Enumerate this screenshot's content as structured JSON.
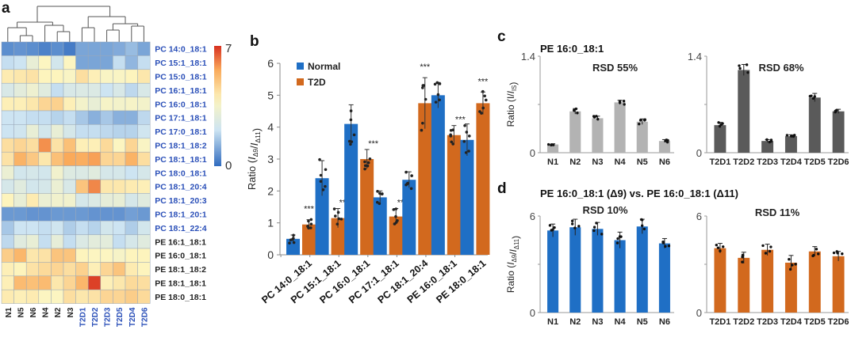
{
  "colors": {
    "normal": "#1f6fc5",
    "t2d": "#d2691e",
    "gray_light": "#b3b3b3",
    "gray_dark": "#5a5a5a",
    "label_blue": "#2a4fb8",
    "label_black": "#222222",
    "heat_low": "#2f6bbf",
    "heat_mid": "#fdf6c0",
    "heat_high": "#d7301f"
  },
  "chart_data": [
    {
      "panel": "a",
      "panel_label": "a",
      "type": "heatmap",
      "columns": [
        "N1",
        "N5",
        "N6",
        "N4",
        "N2",
        "N3",
        "T2D1",
        "T2D2",
        "T2D3",
        "T2D5",
        "T2D4",
        "T2D6"
      ],
      "column_groups": [
        "normal",
        "normal",
        "normal",
        "normal",
        "normal",
        "normal",
        "t2d",
        "t2d",
        "t2d",
        "t2d",
        "t2d",
        "t2d"
      ],
      "rows": [
        "PC 14:0_18:1",
        "PC 15:1_18:1",
        "PC 15:0_18:1",
        "PC 16:1_18:1",
        "PC 16:0_18:1",
        "PC 17:1_18:1",
        "PC 17:0_18:1",
        "PC 18:1_18:2",
        "PC 18:1_18:1",
        "PC 18:0_18:1",
        "PC 18:1_20:4",
        "PC 18:1_20:3",
        "PC 18:1_20:1",
        "PC 18:1_22:4",
        "PE 16:1_18:1",
        "PE 16:0_18:1",
        "PE 18:1_18:2",
        "PE 18:1_18:1",
        "PE 18:0_18:1"
      ],
      "row_groups": [
        "PC",
        "PC",
        "PC",
        "PC",
        "PC",
        "PC",
        "PC",
        "PC",
        "PC",
        "PC",
        "PC",
        "PC",
        "PC",
        "PC",
        "PE",
        "PE",
        "PE",
        "PE",
        "PE"
      ],
      "values": [
        [
          0.6,
          0.7,
          0.6,
          0.4,
          0.6,
          0.3,
          1.0,
          1.0,
          1.0,
          1.1,
          1.4,
          1.0
        ],
        [
          2.0,
          2.1,
          3.1,
          3.8,
          2.3,
          3.8,
          1.0,
          1.0,
          1.0,
          2.0,
          1.3,
          2.0
        ],
        [
          4.1,
          4.2,
          4.3,
          3.9,
          3.9,
          3.7,
          4.4,
          4.0,
          3.7,
          3.7,
          3.9,
          4.2
        ],
        [
          2.5,
          2.9,
          3.3,
          2.8,
          2.0,
          2.5,
          2.6,
          2.6,
          2.1,
          2.5,
          1.9,
          2.5
        ],
        [
          4.0,
          4.0,
          4.2,
          4.6,
          4.7,
          4.0,
          3.5,
          3.1,
          3.6,
          3.5,
          3.6,
          3.5
        ],
        [
          2.1,
          2.1,
          2.0,
          2.0,
          1.8,
          2.0,
          1.6,
          1.2,
          1.6,
          1.2,
          1.2,
          1.9
        ],
        [
          2.1,
          2.2,
          3.1,
          2.3,
          3.1,
          2.4,
          2.0,
          2.0,
          1.9,
          1.8,
          1.8,
          2.2
        ],
        [
          4.4,
          4.6,
          4.4,
          5.9,
          4.3,
          5.1,
          4.0,
          4.0,
          4.5,
          3.8,
          4.6,
          3.7
        ],
        [
          4.3,
          5.4,
          4.9,
          4.2,
          5.1,
          5.6,
          5.5,
          5.7,
          4.6,
          4.6,
          5.4,
          4.4
        ],
        [
          3.2,
          2.3,
          2.4,
          2.3,
          3.4,
          2.7,
          2.6,
          2.8,
          2.4,
          2.4,
          2.1,
          2.4
        ],
        [
          2.4,
          2.8,
          2.3,
          2.4,
          3.2,
          2.5,
          5.0,
          6.0,
          4.2,
          4.2,
          4.1,
          4.0
        ],
        [
          3.9,
          3.1,
          4.1,
          3.2,
          3.4,
          3.4,
          2.4,
          2.6,
          3.0,
          3.1,
          2.4,
          2.8
        ],
        [
          0.8,
          0.8,
          0.7,
          0.7,
          0.8,
          0.8,
          0.8,
          0.7,
          0.7,
          0.7,
          0.9,
          0.8
        ],
        [
          1.6,
          2.1,
          2.1,
          2.0,
          2.2,
          1.7,
          2.0,
          1.8,
          2.3,
          2.1,
          1.7,
          2.3
        ],
        [
          1.9,
          2.8,
          3.1,
          2.0,
          3.0,
          2.0,
          2.6,
          2.9,
          2.9,
          2.0,
          2.4,
          2.8
        ],
        [
          4.8,
          5.3,
          4.2,
          4.3,
          5.0,
          5.0,
          3.9,
          3.8,
          3.8,
          3.6,
          3.9,
          3.9
        ],
        [
          4.0,
          3.9,
          4.3,
          4.5,
          4.6,
          4.4,
          4.7,
          4.0,
          4.6,
          5.0,
          4.1,
          3.9
        ],
        [
          4.0,
          5.2,
          5.1,
          5.2,
          4.2,
          4.6,
          5.3,
          6.8,
          4.0,
          4.2,
          4.5,
          4.4
        ],
        [
          4.1,
          4.0,
          4.1,
          3.8,
          3.8,
          4.4,
          4.2,
          4.3,
          4.6,
          4.6,
          4.8,
          4.5
        ]
      ],
      "colorbar": {
        "min": 0,
        "max": 7,
        "min_label": "0",
        "max_label": "7"
      },
      "dendrogram": "columns"
    },
    {
      "panel": "b",
      "panel_label": "b",
      "type": "bar",
      "categories": [
        "PC 14:0_18:1",
        "PC 15:1_18:1",
        "PC 16:0_18:1",
        "PC 17:1_18:1",
        "PC 18:1_20:4",
        "PE 16:0_18:1",
        "PE 18:0_18:1"
      ],
      "series": [
        {
          "name": "Normal",
          "values": [
            0.5,
            2.4,
            4.1,
            1.8,
            2.35,
            5.0,
            3.6
          ],
          "errors": [
            0.12,
            0.55,
            0.6,
            0.2,
            0.25,
            0.4,
            0.5
          ]
        },
        {
          "name": "T2D",
          "values": [
            0.95,
            1.15,
            3.0,
            1.2,
            4.75,
            3.75,
            4.75
          ],
          "errors": [
            0.15,
            0.3,
            0.3,
            0.25,
            0.8,
            0.3,
            0.35
          ]
        }
      ],
      "significance": [
        "***",
        "***",
        "***",
        "***",
        "***",
        "***",
        "***"
      ],
      "ylabel": "Ratio (I_Δ9/I_Δ11)",
      "ylim": [
        0,
        6
      ],
      "yticks": [
        "0",
        "1",
        "2",
        "3",
        "4",
        "5",
        "6"
      ],
      "legend": "top-left"
    },
    {
      "panel": "c",
      "panel_label": "c",
      "type": "bar",
      "title": "PE 16:0_18:1",
      "ylabel": "Ratio (I/I_IS)",
      "subplots": [
        {
          "annotation": "RSD 55%",
          "categories": [
            "N1",
            "N2",
            "N3",
            "N4",
            "N5",
            "N6"
          ],
          "values": [
            0.12,
            0.6,
            0.5,
            0.73,
            0.45,
            0.17
          ],
          "errors": [
            0.01,
            0.04,
            0.03,
            0.03,
            0.04,
            0.02
          ],
          "ylim": [
            0,
            1.4
          ],
          "yticks": [
            "0",
            "",
            "1.4"
          ],
          "color_key": "gray_light"
        },
        {
          "annotation": "RSD 68%",
          "categories": [
            "T2D1",
            "T2D2",
            "T2D3",
            "T2D4",
            "T2D5",
            "T2D6"
          ],
          "values": [
            0.4,
            1.2,
            0.17,
            0.24,
            0.8,
            0.6
          ],
          "errors": [
            0.04,
            0.08,
            0.02,
            0.02,
            0.06,
            0.03
          ],
          "ylim": [
            0,
            1.4
          ],
          "yticks": [
            "0",
            "",
            "1.4"
          ],
          "color_key": "gray_dark"
        }
      ]
    },
    {
      "panel": "d",
      "panel_label": "d",
      "type": "bar",
      "title": "PE 16:0_18:1 (Δ9) vs. PE 16:0_18:1 (Δ11)",
      "ylabel": "Ratio (I_Δ9/I_Δ11)",
      "subplots": [
        {
          "annotation": "RSD 10%",
          "categories": [
            "N1",
            "N2",
            "N3",
            "N4",
            "N5",
            "N6"
          ],
          "values": [
            5.1,
            5.3,
            5.2,
            4.5,
            5.35,
            4.3
          ],
          "errors": [
            0.4,
            0.5,
            0.4,
            0.5,
            0.45,
            0.3
          ],
          "ylim": [
            0,
            6
          ],
          "yticks": [
            "0",
            "",
            "6"
          ],
          "color_key": "normal"
        },
        {
          "annotation": "RSD 11%",
          "categories": [
            "T2D1",
            "T2D2",
            "T2D3",
            "T2D4",
            "T2D5",
            "T2D6"
          ],
          "values": [
            4.0,
            3.4,
            3.9,
            3.1,
            3.8,
            3.5
          ],
          "errors": [
            0.3,
            0.35,
            0.35,
            0.45,
            0.3,
            0.3
          ],
          "ylim": [
            0,
            6
          ],
          "yticks": [
            "0",
            "",
            "6"
          ],
          "color_key": "t2d"
        }
      ]
    }
  ]
}
